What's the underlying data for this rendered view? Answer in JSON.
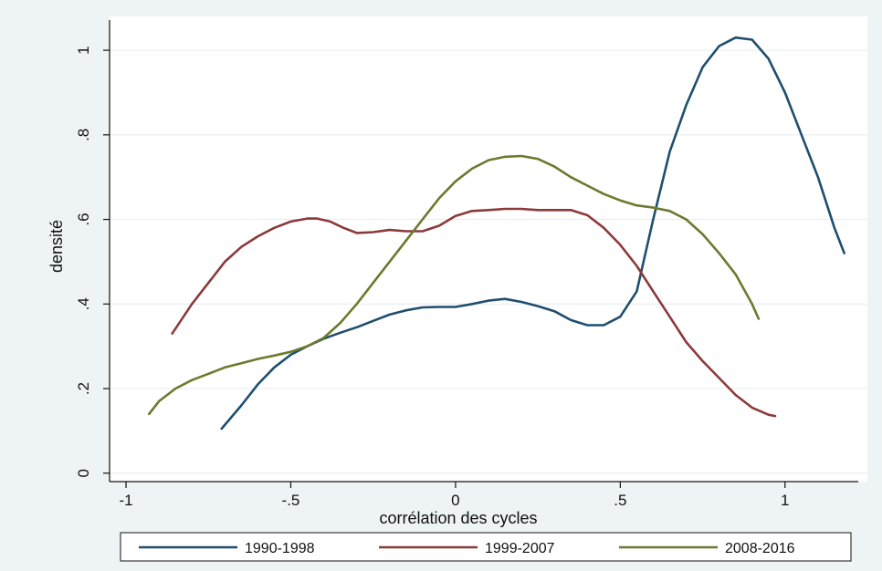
{
  "chart_data": {
    "type": "line",
    "xlabel": "corrélation des cycles",
    "ylabel": "densité",
    "xlim": [
      -1.05,
      1.25
    ],
    "ylim": [
      -0.02,
      1.08
    ],
    "x_ticks": [
      -1,
      -0.5,
      0,
      0.5,
      1
    ],
    "x_tick_labels": [
      "-1",
      "-.5",
      "0",
      ".5",
      "1"
    ],
    "y_ticks": [
      0,
      0.2,
      0.4,
      0.6,
      0.8,
      1
    ],
    "y_tick_labels": [
      "0",
      ".2",
      ".4",
      ".6",
      ".8",
      "1"
    ],
    "grid": true,
    "legend_position": "bottom",
    "series": [
      {
        "name": "1990-1998",
        "color": "#1f4e6e",
        "x": [
          -0.71,
          -0.65,
          -0.6,
          -0.55,
          -0.5,
          -0.45,
          -0.4,
          -0.35,
          -0.3,
          -0.25,
          -0.2,
          -0.15,
          -0.1,
          -0.05,
          0,
          0.05,
          0.1,
          0.15,
          0.2,
          0.25,
          0.3,
          0.35,
          0.4,
          0.45,
          0.5,
          0.55,
          0.6,
          0.65,
          0.7,
          0.75,
          0.8,
          0.85,
          0.9,
          0.95,
          1.0,
          1.05,
          1.1,
          1.15,
          1.18
        ],
        "y": [
          0.105,
          0.16,
          0.21,
          0.25,
          0.28,
          0.3,
          0.318,
          0.332,
          0.345,
          0.36,
          0.375,
          0.385,
          0.392,
          0.393,
          0.393,
          0.4,
          0.408,
          0.412,
          0.405,
          0.395,
          0.383,
          0.362,
          0.35,
          0.35,
          0.37,
          0.43,
          0.6,
          0.76,
          0.87,
          0.96,
          1.01,
          1.03,
          1.025,
          0.98,
          0.9,
          0.8,
          0.7,
          0.58,
          0.52
        ]
      },
      {
        "name": "1999-2007",
        "color": "#8b3a3a",
        "x": [
          -0.86,
          -0.8,
          -0.75,
          -0.7,
          -0.65,
          -0.6,
          -0.55,
          -0.5,
          -0.45,
          -0.42,
          -0.38,
          -0.34,
          -0.3,
          -0.25,
          -0.2,
          -0.15,
          -0.1,
          -0.05,
          0,
          0.05,
          0.1,
          0.15,
          0.2,
          0.25,
          0.3,
          0.35,
          0.4,
          0.45,
          0.5,
          0.55,
          0.6,
          0.65,
          0.7,
          0.75,
          0.8,
          0.85,
          0.9,
          0.95,
          0.97
        ],
        "y": [
          0.33,
          0.4,
          0.45,
          0.5,
          0.535,
          0.56,
          0.58,
          0.595,
          0.602,
          0.602,
          0.595,
          0.58,
          0.568,
          0.57,
          0.575,
          0.572,
          0.572,
          0.585,
          0.608,
          0.62,
          0.622,
          0.625,
          0.625,
          0.622,
          0.622,
          0.622,
          0.61,
          0.58,
          0.54,
          0.49,
          0.43,
          0.37,
          0.31,
          0.265,
          0.225,
          0.185,
          0.155,
          0.138,
          0.135
        ]
      },
      {
        "name": "2008-2016",
        "color": "#6b7a2e",
        "x": [
          -0.93,
          -0.9,
          -0.85,
          -0.8,
          -0.75,
          -0.7,
          -0.65,
          -0.6,
          -0.55,
          -0.5,
          -0.45,
          -0.4,
          -0.35,
          -0.3,
          -0.25,
          -0.2,
          -0.15,
          -0.1,
          -0.05,
          0,
          0.05,
          0.1,
          0.15,
          0.2,
          0.25,
          0.3,
          0.35,
          0.4,
          0.45,
          0.5,
          0.55,
          0.6,
          0.65,
          0.7,
          0.75,
          0.8,
          0.85,
          0.9,
          0.92
        ],
        "y": [
          0.14,
          0.17,
          0.2,
          0.22,
          0.235,
          0.25,
          0.26,
          0.27,
          0.278,
          0.287,
          0.3,
          0.32,
          0.355,
          0.4,
          0.45,
          0.5,
          0.55,
          0.6,
          0.65,
          0.69,
          0.72,
          0.74,
          0.748,
          0.75,
          0.743,
          0.725,
          0.7,
          0.68,
          0.66,
          0.645,
          0.633,
          0.628,
          0.62,
          0.6,
          0.565,
          0.52,
          0.47,
          0.4,
          0.365
        ]
      }
    ]
  }
}
